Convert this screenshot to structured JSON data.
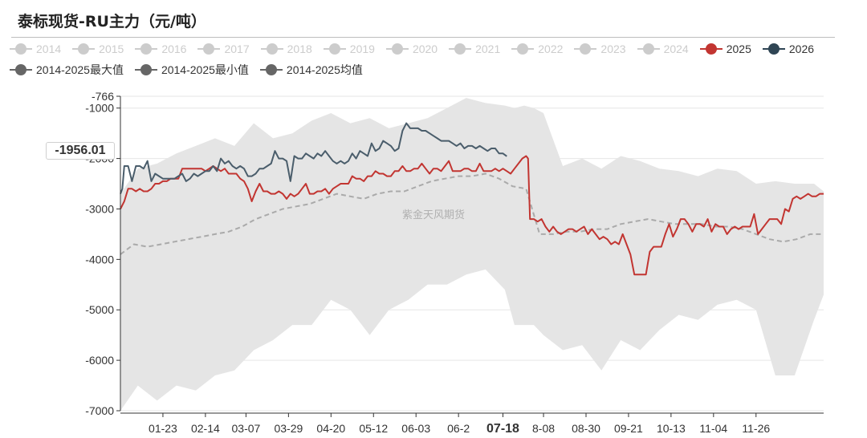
{
  "title": "泰标现货-RU主力（元/吨）",
  "watermark": "紫金天风期货",
  "pointer_label": "-1956.01",
  "colors": {
    "s2025": "#c23531",
    "s2026": "#2f4554",
    "inactive": "#cccccc",
    "stat": "#666666",
    "band": "#e5e5e5",
    "avg": "#aaaaaa"
  },
  "legend_row1": [
    {
      "label": "2014",
      "active": false,
      "color": "#cccccc"
    },
    {
      "label": "2015",
      "active": false,
      "color": "#cccccc"
    },
    {
      "label": "2016",
      "active": false,
      "color": "#cccccc"
    },
    {
      "label": "2017",
      "active": false,
      "color": "#cccccc"
    },
    {
      "label": "2018",
      "active": false,
      "color": "#cccccc"
    },
    {
      "label": "2019",
      "active": false,
      "color": "#cccccc"
    },
    {
      "label": "2020",
      "active": false,
      "color": "#cccccc"
    },
    {
      "label": "2021",
      "active": false,
      "color": "#cccccc"
    },
    {
      "label": "2022",
      "active": false,
      "color": "#cccccc"
    },
    {
      "label": "2023",
      "active": false,
      "color": "#cccccc"
    },
    {
      "label": "2024",
      "active": false,
      "color": "#cccccc"
    },
    {
      "label": "2025",
      "active": true,
      "color": "#c23531"
    },
    {
      "label": "2026",
      "active": true,
      "color": "#2f4554"
    }
  ],
  "legend_row2": [
    {
      "label": "2014-2025最大值",
      "active": true,
      "color": "#666666"
    },
    {
      "label": "2014-2025最小值",
      "active": true,
      "color": "#666666"
    },
    {
      "label": "2014-2025均值",
      "active": true,
      "color": "#666666"
    }
  ],
  "chart_data": {
    "type": "line",
    "title": "泰标现货-RU主力（元/吨）",
    "y_range": [
      -7000,
      -766
    ],
    "y_ticks": [
      "-766",
      "-1000",
      "-2000",
      "-3000",
      "-4000",
      "-5000",
      "-6000",
      "-7000"
    ],
    "x_range_days": [
      1,
      365
    ],
    "x_ticks": [
      {
        "label": "01-23",
        "day": 23,
        "highlight": false
      },
      {
        "label": "02-14",
        "day": 45,
        "highlight": false
      },
      {
        "label": "03-07",
        "day": 66,
        "highlight": false
      },
      {
        "label": "03-29",
        "day": 88,
        "highlight": false
      },
      {
        "label": "04-20",
        "day": 110,
        "highlight": false
      },
      {
        "label": "05-12",
        "day": 132,
        "highlight": false
      },
      {
        "label": "06-03",
        "day": 154,
        "highlight": false
      },
      {
        "label": "06-2",
        "day": 176,
        "highlight": false
      },
      {
        "label": "07-18",
        "day": 199,
        "highlight": true
      },
      {
        "label": "8-08",
        "day": 220,
        "highlight": false
      },
      {
        "label": "08-30",
        "day": 242,
        "highlight": false
      },
      {
        "label": "09-21",
        "day": 264,
        "highlight": false
      },
      {
        "label": "10-13",
        "day": 286,
        "highlight": false
      },
      {
        "label": "11-04",
        "day": 308,
        "highlight": false
      },
      {
        "label": "11-26",
        "day": 330,
        "highlight": false
      }
    ],
    "series": [
      {
        "name": "2025",
        "days": [
          1,
          3,
          5,
          7,
          9,
          11,
          13,
          15,
          17,
          19,
          21,
          23,
          25,
          27,
          29,
          31,
          33,
          35,
          37,
          39,
          41,
          43,
          45,
          47,
          49,
          51,
          53,
          55,
          57,
          59,
          61,
          63,
          65,
          67,
          69,
          71,
          73,
          75,
          77,
          79,
          81,
          83,
          85,
          87,
          89,
          91,
          93,
          95,
          97,
          99,
          101,
          103,
          105,
          107,
          109,
          111,
          113,
          115,
          117,
          119,
          121,
          123,
          125,
          127,
          129,
          131,
          133,
          135,
          137,
          139,
          141,
          143,
          145,
          147,
          149,
          151,
          153,
          155,
          157,
          159,
          161,
          163,
          165,
          167,
          169,
          171,
          173,
          175,
          177,
          179,
          181,
          183,
          185,
          187,
          189,
          191,
          193,
          195,
          197,
          199,
          201,
          203,
          205,
          207,
          209,
          211,
          212,
          213,
          215,
          217,
          219,
          221,
          223,
          225,
          227,
          229,
          231,
          233,
          235,
          237,
          239,
          241,
          243,
          245,
          247,
          249,
          251,
          253,
          255,
          257,
          259,
          261,
          263,
          265,
          267,
          269,
          271,
          273,
          275,
          277,
          279,
          281,
          283,
          285,
          287,
          289,
          291,
          293,
          295,
          297,
          299,
          301,
          303,
          305,
          307,
          309,
          311,
          313,
          315,
          317,
          319,
          321,
          323,
          325,
          327,
          329,
          331,
          333,
          335,
          337,
          339,
          341,
          343,
          345,
          347,
          349,
          351,
          353,
          355,
          357,
          359,
          361,
          363,
          365
        ],
        "values": [
          -3000,
          -2850,
          -2600,
          -2600,
          -2650,
          -2600,
          -2650,
          -2650,
          -2600,
          -2500,
          -2500,
          -2450,
          -2450,
          -2400,
          -2400,
          -2400,
          -2200,
          -2200,
          -2200,
          -2200,
          -2200,
          -2200,
          -2250,
          -2200,
          -2150,
          -2200,
          -2250,
          -2200,
          -2300,
          -2300,
          -2300,
          -2400,
          -2450,
          -2600,
          -2850,
          -2650,
          -2500,
          -2650,
          -2650,
          -2700,
          -2700,
          -2650,
          -2700,
          -2800,
          -2700,
          -2750,
          -2700,
          -2600,
          -2500,
          -2700,
          -2700,
          -2650,
          -2650,
          -2600,
          -2700,
          -2600,
          -2550,
          -2500,
          -2500,
          -2500,
          -2350,
          -2400,
          -2400,
          -2450,
          -2350,
          -2350,
          -2250,
          -2300,
          -2300,
          -2350,
          -2350,
          -2250,
          -2250,
          -2150,
          -2250,
          -2250,
          -2200,
          -2200,
          -2100,
          -2200,
          -2300,
          -2200,
          -2200,
          -2250,
          -2150,
          -2050,
          -2250,
          -2250,
          -2250,
          -2200,
          -2200,
          -2250,
          -2250,
          -2100,
          -2250,
          -2250,
          -2250,
          -2200,
          -2250,
          -2200,
          -2250,
          -2300,
          -2200,
          -2100,
          -2000,
          -1950,
          -2000,
          -3200,
          -3200,
          -3250,
          -3200,
          -3350,
          -3450,
          -3350,
          -3450,
          -3500,
          -3450,
          -3400,
          -3400,
          -3450,
          -3400,
          -3350,
          -3500,
          -3400,
          -3500,
          -3600,
          -3550,
          -3600,
          -3700,
          -3650,
          -3700,
          -3500,
          -3700,
          -3900,
          -4300,
          -4300,
          -4300,
          -4300,
          -3850,
          -3750,
          -3750,
          -3750,
          -3500,
          -3300,
          -3550,
          -3400,
          -3200,
          -3200,
          -3300,
          -3450,
          -3300,
          -3300,
          -3350,
          -3200,
          -3450,
          -3300,
          -3350,
          -3350,
          -3500,
          -3400,
          -3350,
          -3400,
          -3350,
          -3350,
          -3350,
          -3100,
          -3500,
          -3400,
          -3300,
          -3200,
          -3200,
          -3200,
          -3300,
          -3000,
          -3050,
          -2800,
          -2750,
          -2800,
          -2750,
          -2700,
          -2750,
          -2750,
          -2700,
          -2700
        ]
      },
      {
        "name": "2026",
        "days": [
          1,
          2,
          3,
          5,
          7,
          9,
          11,
          13,
          15,
          17,
          19,
          21,
          23,
          25,
          27,
          29,
          31,
          33,
          35,
          37,
          39,
          41,
          43,
          45,
          47,
          49,
          51,
          53,
          55,
          57,
          59,
          61,
          63,
          65,
          67,
          69,
          71,
          73,
          75,
          77,
          79,
          81,
          83,
          85,
          87,
          89,
          91,
          93,
          95,
          97,
          99,
          101,
          103,
          105,
          107,
          109,
          111,
          113,
          115,
          117,
          119,
          121,
          123,
          125,
          127,
          129,
          131,
          133,
          135,
          137,
          139,
          141,
          143,
          145,
          147,
          149,
          151,
          153,
          155,
          157,
          159,
          161,
          163,
          165,
          167,
          169,
          171,
          173,
          175,
          177,
          179,
          181,
          183,
          185,
          187,
          189,
          191,
          193,
          195,
          197,
          199,
          201
        ],
        "values": [
          -2700,
          -2600,
          -2150,
          -2150,
          -2450,
          -2150,
          -2150,
          -2200,
          -2050,
          -2450,
          -2300,
          -2350,
          -2400,
          -2400,
          -2400,
          -2400,
          -2350,
          -2300,
          -2450,
          -2400,
          -2300,
          -2350,
          -2300,
          -2250,
          -2250,
          -2150,
          -2250,
          -2000,
          -2100,
          -2050,
          -2150,
          -2200,
          -2150,
          -2200,
          -2350,
          -2350,
          -2300,
          -2200,
          -2200,
          -2150,
          -2100,
          -1850,
          -2000,
          -2000,
          -2050,
          -2450,
          -1950,
          -2000,
          -2000,
          -1900,
          -1950,
          -2000,
          -1900,
          -1950,
          -1850,
          -1950,
          -2050,
          -2100,
          -2050,
          -2100,
          -2050,
          -1900,
          -2000,
          -1850,
          -1900,
          -1950,
          -1700,
          -1850,
          -1800,
          -1650,
          -1700,
          -1750,
          -1850,
          -1800,
          -1450,
          -1300,
          -1400,
          -1400,
          -1400,
          -1450,
          -1450,
          -1500,
          -1550,
          -1600,
          -1650,
          -1650,
          -1650,
          -1700,
          -1750,
          -1700,
          -1800,
          -1750,
          -1750,
          -1800,
          -1750,
          -1800,
          -1850,
          -1800,
          -1800,
          -1900,
          -1900,
          -1956
        ]
      },
      {
        "name": "2014-2025最大值",
        "days": [
          1,
          10,
          20,
          30,
          40,
          50,
          60,
          70,
          80,
          90,
          100,
          110,
          120,
          130,
          140,
          150,
          160,
          170,
          180,
          190,
          200,
          205,
          210,
          215,
          220,
          230,
          240,
          250,
          260,
          270,
          280,
          290,
          300,
          310,
          320,
          330,
          340,
          350,
          360,
          365
        ],
        "values": [
          -2700,
          -2200,
          -2100,
          -1900,
          -1750,
          -1600,
          -1750,
          -1300,
          -1600,
          -1500,
          -1250,
          -1100,
          -1300,
          -1200,
          -1400,
          -1300,
          -1200,
          -1000,
          -800,
          -900,
          -950,
          -1000,
          -950,
          -1000,
          -1100,
          -2150,
          -2000,
          -2200,
          -1950,
          -2050,
          -2200,
          -2250,
          -2350,
          -2200,
          -2250,
          -2500,
          -2450,
          -2500,
          -2500,
          -2650
        ]
      },
      {
        "name": "2014-2025最小值",
        "days": [
          1,
          10,
          20,
          30,
          40,
          50,
          60,
          70,
          80,
          90,
          100,
          110,
          120,
          130,
          140,
          150,
          160,
          170,
          180,
          190,
          200,
          205,
          210,
          215,
          220,
          230,
          240,
          250,
          260,
          270,
          280,
          290,
          300,
          310,
          320,
          330,
          340,
          350,
          360,
          365
        ],
        "values": [
          -7000,
          -6500,
          -6800,
          -6500,
          -6600,
          -6300,
          -6200,
          -5800,
          -5600,
          -5300,
          -5300,
          -4800,
          -5000,
          -5500,
          -5000,
          -4800,
          -4500,
          -4500,
          -4300,
          -4200,
          -4600,
          -5300,
          -5300,
          -5300,
          -5500,
          -5800,
          -5700,
          -6200,
          -5600,
          -5800,
          -5400,
          -5100,
          -5200,
          -4900,
          -4800,
          -5000,
          -6300,
          -6300,
          -5200,
          -4700
        ]
      },
      {
        "name": "2014-2025均值",
        "days": [
          1,
          8,
          15,
          22,
          29,
          36,
          43,
          50,
          57,
          64,
          71,
          78,
          85,
          92,
          99,
          106,
          113,
          120,
          127,
          134,
          141,
          148,
          155,
          162,
          169,
          176,
          183,
          190,
          197,
          204,
          211,
          218,
          225,
          232,
          239,
          246,
          253,
          260,
          267,
          274,
          281,
          288,
          295,
          302,
          309,
          316,
          323,
          330,
          337,
          344,
          351,
          358,
          365
        ],
        "values": [
          -3900,
          -3700,
          -3750,
          -3700,
          -3650,
          -3600,
          -3550,
          -3500,
          -3450,
          -3350,
          -3200,
          -3100,
          -3000,
          -2950,
          -2900,
          -2800,
          -2700,
          -2750,
          -2800,
          -2700,
          -2650,
          -2650,
          -2550,
          -2450,
          -2400,
          -2350,
          -2350,
          -2300,
          -2400,
          -2550,
          -2600,
          -3500,
          -3500,
          -3450,
          -3450,
          -3400,
          -3400,
          -3300,
          -3250,
          -3200,
          -3250,
          -3300,
          -3300,
          -3300,
          -3350,
          -3350,
          -3400,
          -3500,
          -3600,
          -3650,
          -3600,
          -3500,
          -3500
        ]
      }
    ]
  }
}
